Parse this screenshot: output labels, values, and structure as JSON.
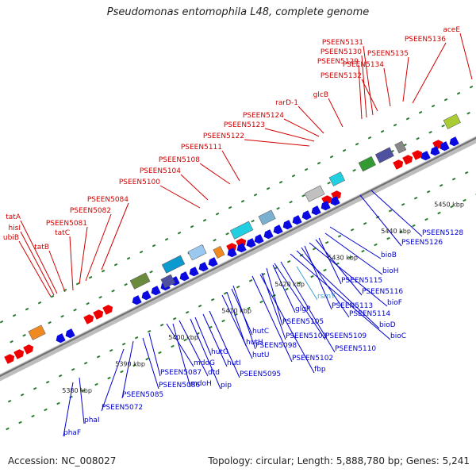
{
  "title": "Pseudomonas entomophila L48, complete genome",
  "accession": "Accession: NC_008027",
  "topology": "Topology: circular; Length: 5,888,780 bp; Genes: 5,241",
  "colors": {
    "forward_label": "#d00000",
    "reverse_label": "#0000d0",
    "rna_label": "#3aa0d8",
    "axis": "#888888",
    "tick": "#2e7d2e",
    "forward_arrow": "#ee0000",
    "reverse_arrow": "#0a0ae0"
  },
  "scale_labels": [
    "5380 kbp",
    "5390 kbp",
    "5400 kbp",
    "5410 kbp",
    "5420 kbp",
    "5430 kbp",
    "5440 kbp",
    "5450 kbp"
  ],
  "forward_genes": [
    "aceE",
    "PSEEN5136",
    "PSEEN5135",
    "PSEEN5134",
    "PSEEN5132",
    "PSEEN5131",
    "PSEEN5130",
    "PSEEN5129",
    "glcB",
    "rarD-1",
    "PSEEN5124",
    "PSEEN5123",
    "PSEEN5122",
    "PSEEN5111",
    "PSEEN5108",
    "PSEEN5104",
    "PSEEN5100",
    "PSEEN5084",
    "PSEEN5082",
    "PSEEN5081",
    "tatC",
    "tatA",
    "hisI",
    "ubiB",
    "tatB"
  ],
  "reverse_genes": [
    "PSEEN5128",
    "PSEEN5126",
    "bioB",
    "bioH",
    "PSEEN5115",
    "PSEEN5116",
    "bioF",
    "PSEEN5113",
    "PSEEN5114",
    "bioD",
    "bioC",
    "rsmY",
    "glgP",
    "PSEEN5105",
    "PSEEN5109",
    "PSEEN5110",
    "PSEEN5103",
    "hutC",
    "hutH",
    "PSEEN5098",
    "hutU",
    "PSEEN5102",
    "fbp",
    "hutG",
    "hutI",
    "PSEEN5095",
    "mdoG",
    "dtd",
    "PSEEN5087",
    "mdoH",
    "pip",
    "PSEEN5086",
    "PSEEN5085",
    "PSEEN5072",
    "phaI",
    "phaF"
  ]
}
